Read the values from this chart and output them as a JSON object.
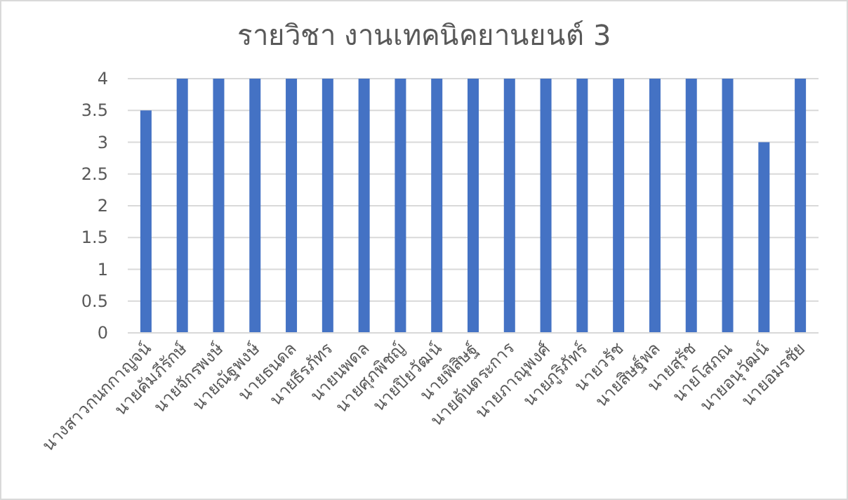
{
  "chart_data": {
    "type": "bar",
    "title": "รายวิชา งานเทคนิคยานยนต์ 3",
    "categories": [
      "นางสาวกนกกาญจน์",
      "นายคัมภีรักษ์",
      "นายจักรพงษ์",
      "นายณัฐพงษ์",
      "นายธนดล",
      "นายธีรภัทร",
      "นายนพดล",
      "นายศุภพิชญ์",
      "นายปิยวัฒน์",
      "นายพิสิษฐ์",
      "นายต้นตระการ",
      "นายภาณุพงศ์",
      "นายภูริภัทร์",
      "นายวรัช",
      "นายสิษฐ์พล",
      "นายสุรัช",
      "นายโสภณ",
      "นายอนุวัฒน์",
      "นายอมรชัย"
    ],
    "values": [
      3.5,
      4,
      4,
      4,
      4,
      4,
      4,
      4,
      4,
      4,
      4,
      4,
      4,
      4,
      4,
      4,
      4,
      3,
      4
    ],
    "color": "#4472c4",
    "ylim": [
      0,
      4
    ],
    "yticks": [
      0,
      0.5,
      1,
      1.5,
      2,
      2.5,
      3,
      3.5,
      4
    ],
    "grid": "y"
  }
}
